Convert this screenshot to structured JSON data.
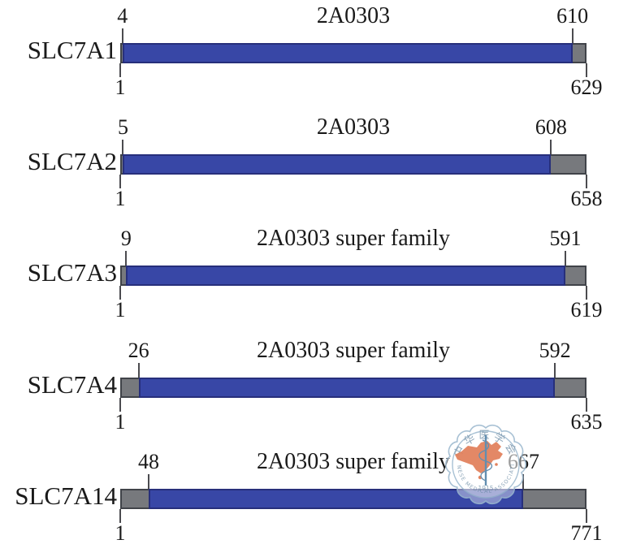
{
  "figure": {
    "title": "",
    "background": "#ffffff",
    "colors": {
      "domain_fill": "#3847a6",
      "domain_border": "#272f7b",
      "backbone_fill": "#77797d",
      "backbone_border": "#404349",
      "tick": "#4b4b4f",
      "text": "#1a1a1a"
    },
    "rows": [
      {
        "name": "SLC7A1",
        "domain_label": "2A0303",
        "domain_start": 4,
        "domain_end": 610,
        "start": 1,
        "total": 629
      },
      {
        "name": "SLC7A2",
        "domain_label": "2A0303",
        "domain_start": 5,
        "domain_end": 608,
        "start": 1,
        "total": 658
      },
      {
        "name": "SLC7A3",
        "domain_label": "2A0303 super family",
        "domain_start": 9,
        "domain_end": 591,
        "start": 1,
        "total": 619
      },
      {
        "name": "SLC7A4",
        "domain_label": "2A0303 super family",
        "domain_start": 26,
        "domain_end": 592,
        "start": 1,
        "total": 635
      },
      {
        "name": "SLC7A14",
        "domain_label": "2A0303 super family",
        "domain_start": 48,
        "domain_end": 667,
        "start": 1,
        "total": 771
      }
    ],
    "watermark": {
      "top_text": "中华医学会",
      "bottom_text": "CHINESE MEDICAL ASSOCIATION",
      "year": "1915",
      "ring_color": "#9db9cf",
      "text_color": "#7e9ab0",
      "map_color": "#dd7148",
      "staff_color": "#4d7fa6"
    }
  }
}
